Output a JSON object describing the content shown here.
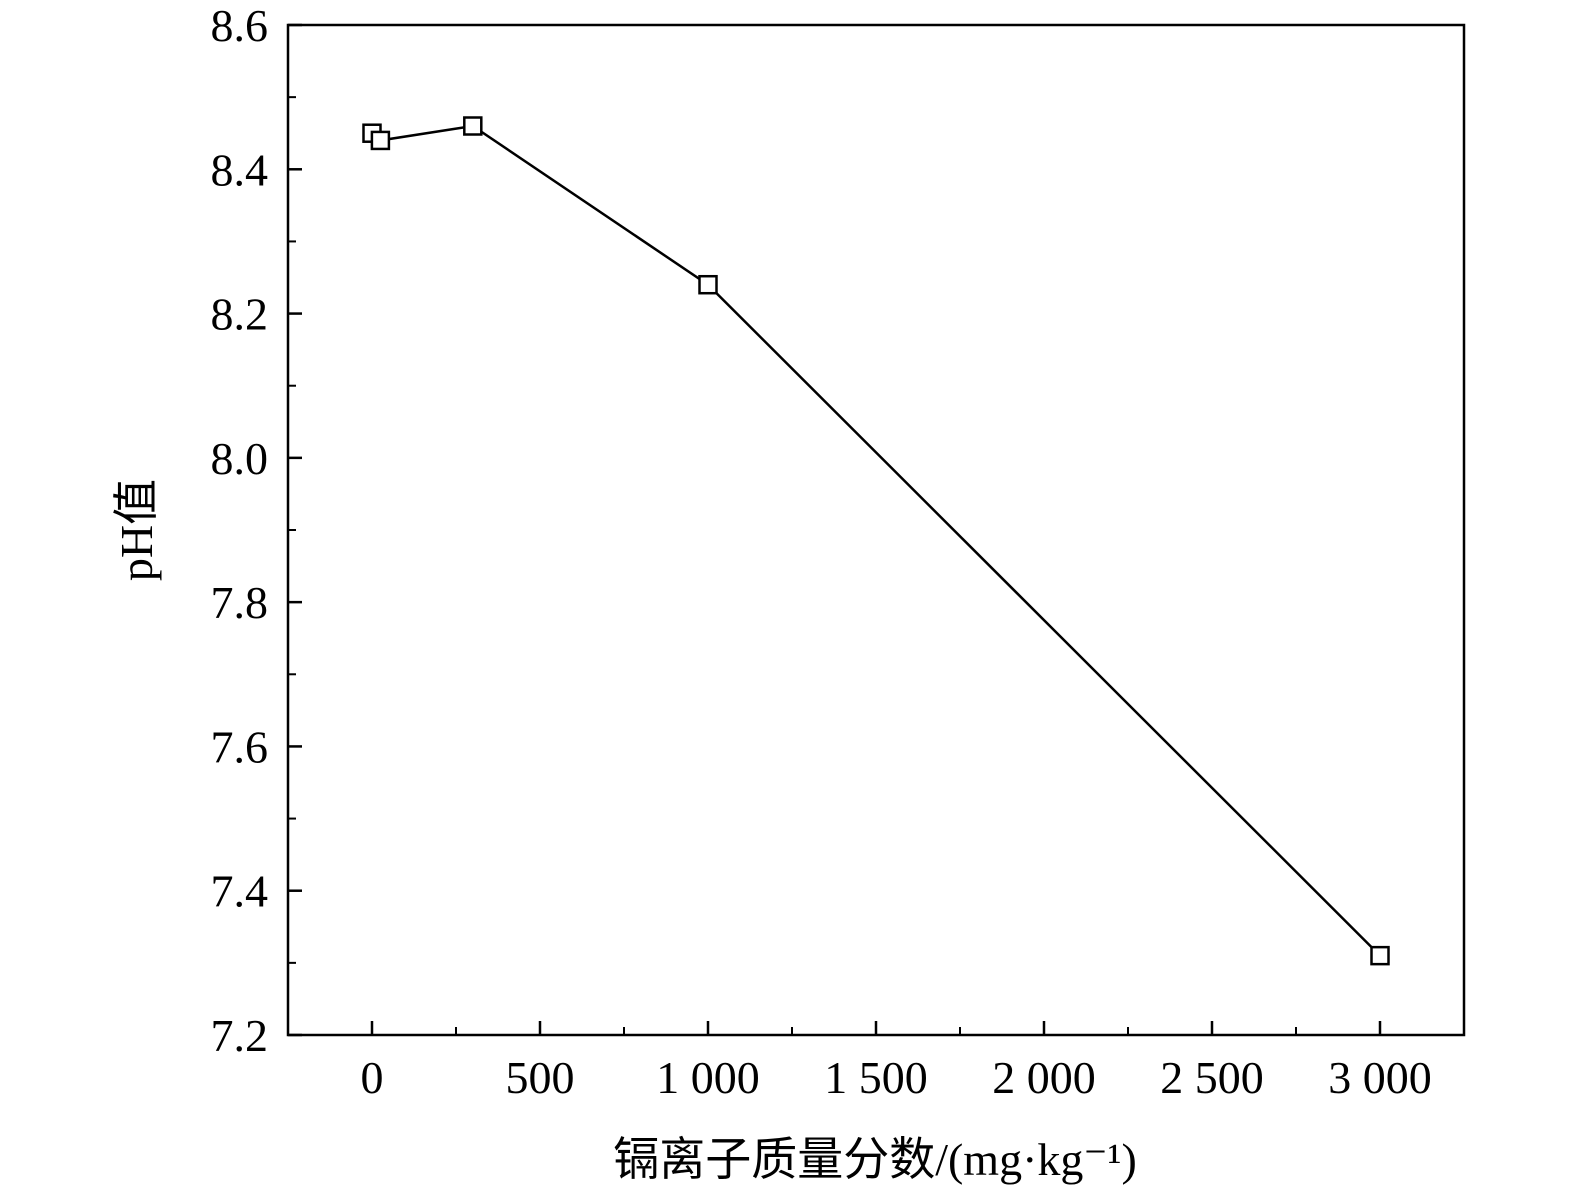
{
  "chart_data": {
    "type": "line",
    "title": "",
    "xlabel": "镉离子质量分数/(mg·kg⁻¹)",
    "ylabel": "pH值",
    "xlim": [
      -250,
      3250
    ],
    "ylim": [
      7.2,
      8.6
    ],
    "x_ticks": [
      0,
      500,
      1000,
      1500,
      2000,
      2500,
      3000
    ],
    "x_tick_labels": [
      "0",
      "500",
      "1 000",
      "1 500",
      "2 000",
      "2 500",
      "3 000"
    ],
    "y_ticks": [
      7.2,
      7.4,
      7.6,
      7.8,
      8.0,
      8.2,
      8.4,
      8.6
    ],
    "y_tick_labels": [
      "7.2",
      "7.4",
      "7.6",
      "7.8",
      "8.0",
      "8.2",
      "8.4",
      "8.6"
    ],
    "marker": "open-square",
    "grid": false,
    "legend": "none",
    "line_color": "#000000",
    "series": [
      {
        "x": [
          0,
          25,
          300,
          1000,
          3000
        ],
        "y": [
          8.45,
          8.44,
          8.46,
          8.24,
          7.31
        ]
      }
    ]
  }
}
